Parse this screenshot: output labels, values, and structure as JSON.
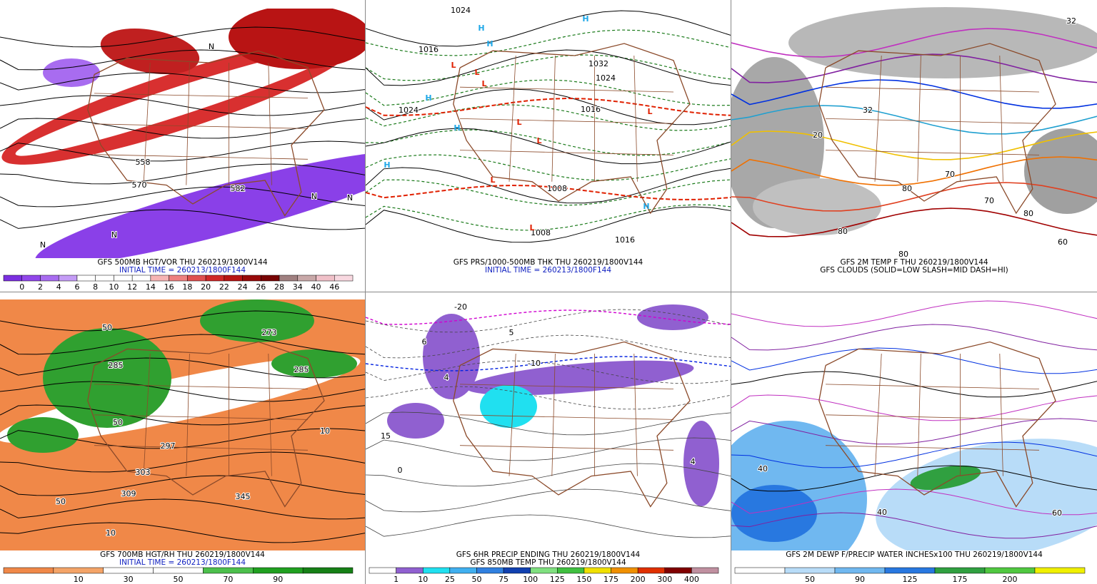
{
  "panels": [
    {
      "caption": [
        "GFS 500MB HGT/VOR THU 260219/1800V144",
        "INITIAL TIME = 260213/1800F144"
      ],
      "colorbar": {
        "labels": [
          "0",
          "2",
          "4",
          "6",
          "8",
          "10",
          "12",
          "14",
          "16",
          "18",
          "20",
          "22",
          "24",
          "26",
          "28",
          "34",
          "40",
          "46"
        ],
        "colors": [
          "#7b2fe0",
          "#9147ea",
          "#a86cf0",
          "#c49cf6",
          "#ffffff",
          "#ffffff",
          "#ffffff",
          "#ffffff",
          "#f6b4b4",
          "#ee8080",
          "#e05050",
          "#d02828",
          "#b81414",
          "#980a0a",
          "#780404",
          "#a08080",
          "#c8a8a8",
          "#f0c0c8",
          "#f8d8e0"
        ]
      },
      "map_labels": [
        "558",
        "570",
        "582",
        "N",
        "N",
        "N",
        "N",
        "N"
      ]
    },
    {
      "caption": [
        "GFS PRS/1000-500MB THK THU 260219/1800V144",
        "INITIAL TIME = 260213/1800F144"
      ],
      "map_labels": [
        "1024",
        "1016",
        "1032",
        "1024",
        "1016",
        "1008",
        "1016",
        "1008",
        "1024",
        "H",
        "H",
        "H",
        "H",
        "H",
        "H",
        "H",
        "L",
        "L",
        "L",
        "L",
        "L",
        "L",
        "L",
        "L"
      ]
    },
    {
      "caption": [
        "GFS 2M TEMP F THU 260219/1800V144",
        "GFS CLOUDS (SOLID=LOW SLASH=MID DASH=HI)"
      ],
      "map_labels": [
        "32",
        "20",
        "70",
        "80",
        "80",
        "80",
        "80",
        "70",
        "60",
        "32"
      ]
    },
    {
      "caption": [
        "GFS 700MB HGT/RH THU 260219/1800V144",
        "INITIAL TIME = 260213/1800F144"
      ],
      "colorbar": {
        "labels": [
          "10",
          "30",
          "50",
          "70",
          "90"
        ],
        "colors": [
          "#f08848",
          "#f4a468",
          "#ffffff",
          "#ffffff",
          "#4cc04c",
          "#20a020",
          "#168016"
        ]
      },
      "map_labels": [
        "50",
        "285",
        "50",
        "297",
        "303",
        "309",
        "345",
        "10",
        "50",
        "273",
        "285",
        "10"
      ]
    },
    {
      "caption": [
        "GFS 6HR PRECIP ENDING THU 260219/1800V144",
        "GFS 850MB TEMP THU 260219/1800V144"
      ],
      "colorbar": {
        "labels": [
          "1",
          "10",
          "25",
          "50",
          "75",
          "100",
          "125",
          "150",
          "175",
          "200",
          "300",
          "400"
        ],
        "colors": [
          "#ffffff",
          "#9060d0",
          "#20e0f0",
          "#40b0f0",
          "#3080e0",
          "#1040b0",
          "#80e080",
          "#40c040",
          "#f0e000",
          "#f09000",
          "#e03000",
          "#800000",
          "#c090a0"
        ]
      },
      "map_labels": [
        "-20",
        "-10",
        "0",
        "6",
        "5",
        "4",
        "4",
        "15"
      ]
    },
    {
      "caption": [
        "GFS 2M DEWP F/PRECIP WATER INCHESx100 THU 260219/1800V144"
      ],
      "colorbar": {
        "labels": [
          "50",
          "90",
          "125",
          "175",
          "200"
        ],
        "colors": [
          "#ffffff",
          "#b8dcf8",
          "#70b8f0",
          "#2878e0",
          "#30a040",
          "#50c840",
          "#f0f000"
        ]
      },
      "map_labels": [
        "40",
        "40",
        "60"
      ]
    }
  ]
}
